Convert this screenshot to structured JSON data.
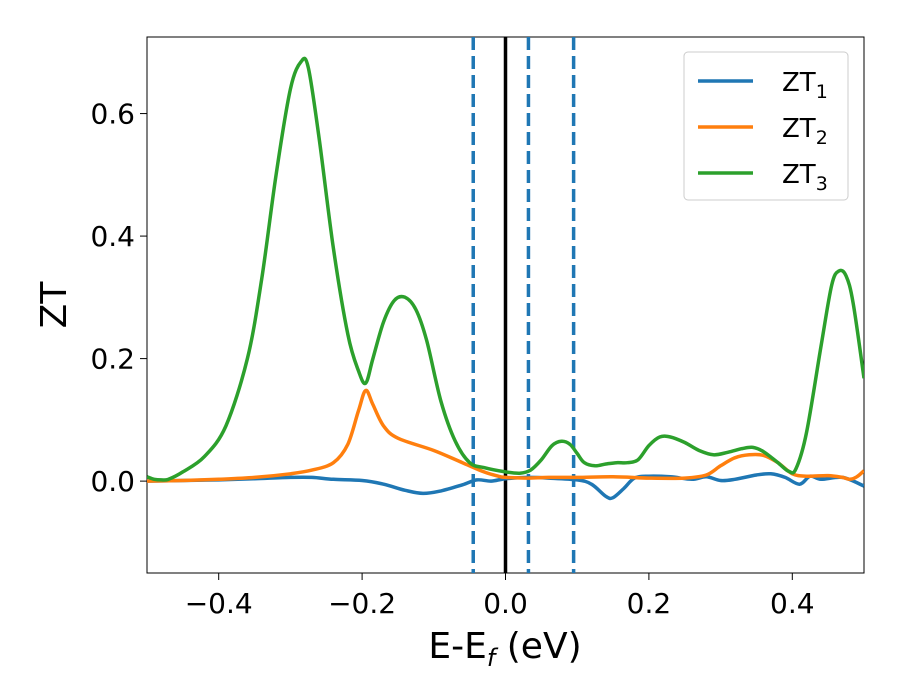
{
  "chart_data": {
    "type": "line",
    "xlabel": "E-E_f (eV)",
    "xlabel_parts": {
      "base": "E-E",
      "sub": "f",
      "suffix": " (eV)"
    },
    "ylabel": "ZT",
    "xlim": [
      -0.5,
      0.5
    ],
    "ylim": [
      -0.15,
      0.725
    ],
    "x_ticks": [
      -0.4,
      -0.2,
      0.0,
      0.2,
      0.4
    ],
    "x_tick_labels": [
      "−0.4",
      "−0.2",
      "0.0",
      "0.2",
      "0.4"
    ],
    "y_ticks": [
      0.0,
      0.2,
      0.4,
      0.6
    ],
    "y_tick_labels": [
      "0.0",
      "0.2",
      "0.4",
      "0.6"
    ],
    "grid": false,
    "legend_position": "top-right",
    "reference_lines": [
      {
        "x": 0.0,
        "style": "solid",
        "color": "#000000"
      },
      {
        "x": -0.045,
        "style": "dashed",
        "color": "#1f77b4"
      },
      {
        "x": 0.032,
        "style": "dashed",
        "color": "#1f77b4"
      },
      {
        "x": 0.095,
        "style": "dashed",
        "color": "#1f77b4"
      }
    ],
    "series": [
      {
        "name": "ZT_1",
        "label_base": "ZT",
        "label_sub": "1",
        "color": "#1f77b4",
        "points": [
          [
            -0.5,
            0.0
          ],
          [
            -0.45,
            0.001
          ],
          [
            -0.4,
            0.002
          ],
          [
            -0.35,
            0.004
          ],
          [
            -0.3,
            0.006
          ],
          [
            -0.27,
            0.006
          ],
          [
            -0.24,
            0.003
          ],
          [
            -0.2,
            0.001
          ],
          [
            -0.17,
            -0.005
          ],
          [
            -0.14,
            -0.015
          ],
          [
            -0.115,
            -0.02
          ],
          [
            -0.09,
            -0.016
          ],
          [
            -0.06,
            -0.006
          ],
          [
            -0.04,
            0.002
          ],
          [
            -0.02,
            0.0
          ],
          [
            0.0,
            0.004
          ],
          [
            0.03,
            0.006
          ],
          [
            0.06,
            0.005
          ],
          [
            0.1,
            0.002
          ],
          [
            0.12,
            -0.005
          ],
          [
            0.14,
            -0.025
          ],
          [
            0.15,
            -0.027
          ],
          [
            0.165,
            -0.012
          ],
          [
            0.18,
            0.005
          ],
          [
            0.2,
            0.008
          ],
          [
            0.23,
            0.007
          ],
          [
            0.26,
            0.003
          ],
          [
            0.28,
            0.007
          ],
          [
            0.3,
            0.001
          ],
          [
            0.32,
            0.003
          ],
          [
            0.35,
            0.01
          ],
          [
            0.37,
            0.012
          ],
          [
            0.39,
            0.006
          ],
          [
            0.41,
            -0.005
          ],
          [
            0.425,
            0.008
          ],
          [
            0.44,
            0.003
          ],
          [
            0.47,
            0.006
          ],
          [
            0.5,
            -0.008
          ]
        ]
      },
      {
        "name": "ZT_2",
        "label_base": "ZT",
        "label_sub": "2",
        "color": "#ff7f0e",
        "points": [
          [
            -0.5,
            0.0
          ],
          [
            -0.45,
            0.001
          ],
          [
            -0.4,
            0.003
          ],
          [
            -0.35,
            0.006
          ],
          [
            -0.3,
            0.012
          ],
          [
            -0.27,
            0.018
          ],
          [
            -0.24,
            0.03
          ],
          [
            -0.22,
            0.06
          ],
          [
            -0.205,
            0.115
          ],
          [
            -0.195,
            0.148
          ],
          [
            -0.185,
            0.125
          ],
          [
            -0.17,
            0.09
          ],
          [
            -0.15,
            0.07
          ],
          [
            -0.1,
            0.05
          ],
          [
            -0.06,
            0.03
          ],
          [
            -0.03,
            0.015
          ],
          [
            -0.01,
            0.008
          ],
          [
            0.0,
            0.006
          ],
          [
            0.03,
            0.005
          ],
          [
            0.06,
            0.006
          ],
          [
            0.1,
            0.006
          ],
          [
            0.15,
            0.007
          ],
          [
            0.2,
            0.005
          ],
          [
            0.25,
            0.005
          ],
          [
            0.28,
            0.01
          ],
          [
            0.3,
            0.025
          ],
          [
            0.32,
            0.038
          ],
          [
            0.34,
            0.043
          ],
          [
            0.36,
            0.042
          ],
          [
            0.38,
            0.03
          ],
          [
            0.4,
            0.012
          ],
          [
            0.42,
            0.008
          ],
          [
            0.45,
            0.009
          ],
          [
            0.47,
            0.006
          ],
          [
            0.48,
            0.003
          ],
          [
            0.49,
            0.007
          ],
          [
            0.5,
            0.017
          ]
        ]
      },
      {
        "name": "ZT_3",
        "label_base": "ZT",
        "label_sub": "3",
        "color": "#2ca02c",
        "points": [
          [
            -0.5,
            0.007
          ],
          [
            -0.49,
            0.003
          ],
          [
            -0.48,
            0.002
          ],
          [
            -0.47,
            0.003
          ],
          [
            -0.45,
            0.015
          ],
          [
            -0.42,
            0.04
          ],
          [
            -0.39,
            0.09
          ],
          [
            -0.36,
            0.2
          ],
          [
            -0.34,
            0.33
          ],
          [
            -0.32,
            0.5
          ],
          [
            -0.3,
            0.64
          ],
          [
            -0.285,
            0.685
          ],
          [
            -0.275,
            0.675
          ],
          [
            -0.26,
            0.56
          ],
          [
            -0.24,
            0.38
          ],
          [
            -0.22,
            0.24
          ],
          [
            -0.205,
            0.18
          ],
          [
            -0.195,
            0.16
          ],
          [
            -0.185,
            0.2
          ],
          [
            -0.17,
            0.26
          ],
          [
            -0.155,
            0.295
          ],
          [
            -0.14,
            0.3
          ],
          [
            -0.125,
            0.28
          ],
          [
            -0.11,
            0.23
          ],
          [
            -0.09,
            0.13
          ],
          [
            -0.07,
            0.065
          ],
          [
            -0.05,
            0.03
          ],
          [
            -0.03,
            0.022
          ],
          [
            0.0,
            0.015
          ],
          [
            0.02,
            0.013
          ],
          [
            0.035,
            0.018
          ],
          [
            0.05,
            0.035
          ],
          [
            0.065,
            0.058
          ],
          [
            0.078,
            0.065
          ],
          [
            0.09,
            0.06
          ],
          [
            0.1,
            0.045
          ],
          [
            0.11,
            0.03
          ],
          [
            0.125,
            0.025
          ],
          [
            0.14,
            0.028
          ],
          [
            0.155,
            0.03
          ],
          [
            0.17,
            0.03
          ],
          [
            0.185,
            0.035
          ],
          [
            0.2,
            0.058
          ],
          [
            0.215,
            0.072
          ],
          [
            0.23,
            0.072
          ],
          [
            0.25,
            0.063
          ],
          [
            0.27,
            0.05
          ],
          [
            0.29,
            0.043
          ],
          [
            0.31,
            0.047
          ],
          [
            0.33,
            0.053
          ],
          [
            0.345,
            0.055
          ],
          [
            0.36,
            0.048
          ],
          [
            0.38,
            0.03
          ],
          [
            0.395,
            0.016
          ],
          [
            0.405,
            0.02
          ],
          [
            0.42,
            0.08
          ],
          [
            0.44,
            0.22
          ],
          [
            0.455,
            0.32
          ],
          [
            0.465,
            0.343
          ],
          [
            0.475,
            0.335
          ],
          [
            0.485,
            0.29
          ],
          [
            0.5,
            0.168
          ]
        ]
      }
    ]
  }
}
